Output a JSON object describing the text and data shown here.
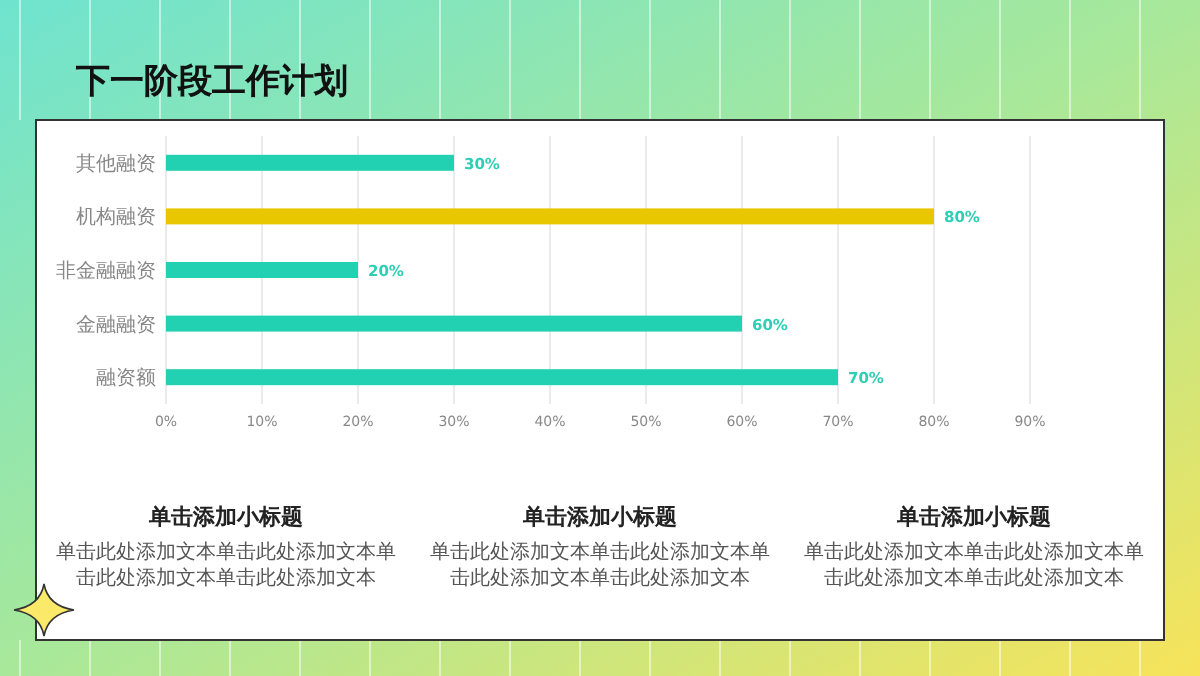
{
  "chart_data": {
    "type": "bar",
    "orientation": "horizontal",
    "title": "下一阶段工作计划",
    "categories": [
      "其他融资",
      "机构融资",
      "非金融融资",
      "金融融资",
      "融资额"
    ],
    "values": [
      30,
      80,
      20,
      60,
      70
    ],
    "colors": [
      "#22d1b2",
      "#e8c700",
      "#22d1b2",
      "#22d1b2",
      "#22d1b2"
    ],
    "value_labels": [
      "30%",
      "80%",
      "20%",
      "60%",
      "70%"
    ],
    "xlim": [
      0,
      90
    ],
    "xticks": [
      {
        "value": 0,
        "label": "0%"
      },
      {
        "value": 10,
        "label": "10%"
      },
      {
        "value": 20,
        "label": "20%"
      },
      {
        "value": 30,
        "label": "30%"
      },
      {
        "value": 40,
        "label": "40%"
      },
      {
        "value": 50,
        "label": "50%"
      },
      {
        "value": 60,
        "label": "60%"
      },
      {
        "value": 70,
        "label": "70%"
      },
      {
        "value": 80,
        "label": "80%"
      },
      {
        "value": 90,
        "label": "90%"
      }
    ],
    "grid": "x",
    "annotations": [
      "单击添加小标题",
      "单击此处添加文本单击此处添加文本单击此处添加文本单击此处添加文本",
      "单击添加小标题",
      "单击此处添加文本单击此处添加文本单击此处添加文本单击此处添加文本",
      "单击添加小标题",
      "单击此处添加文本单击此处添加文本单击此处添加文本单击此处添加文本"
    ]
  }
}
